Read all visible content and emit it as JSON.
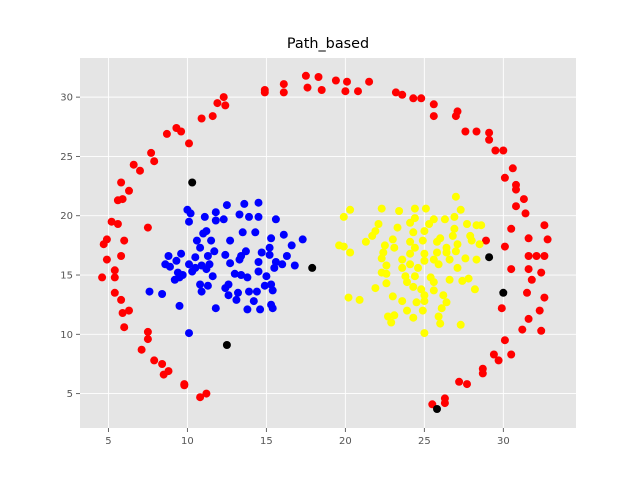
{
  "chart_data": {
    "type": "scatter",
    "title": "Path_based",
    "xlabel": "",
    "ylabel": "",
    "xlim": [
      3.2,
      34.6
    ],
    "ylim": [
      2.1,
      33.3
    ],
    "xticks": [
      5,
      10,
      15,
      20,
      25,
      30
    ],
    "yticks": [
      5,
      10,
      15,
      20,
      25,
      30
    ],
    "grid": true,
    "legend": "none",
    "colors": {
      "background": "#E5E5E5",
      "grid": "#FFFFFF",
      "ring": "#FF0000",
      "left": "#0000FF",
      "right": "#FFFF00",
      "noise": "#000000"
    },
    "series": [
      {
        "color": "#FF0000",
        "points": [
          [
            17.5,
            31.8
          ],
          [
            18.3,
            31.7
          ],
          [
            19.4,
            31.4
          ],
          [
            20.1,
            31.3
          ],
          [
            21.5,
            31.3
          ],
          [
            16.1,
            31.1
          ],
          [
            17.6,
            30.8
          ],
          [
            18.5,
            30.6
          ],
          [
            20.0,
            30.5
          ],
          [
            20.8,
            30.5
          ],
          [
            14.9,
            30.6
          ],
          [
            14.9,
            30.4
          ],
          [
            16.1,
            30.4
          ],
          [
            23.2,
            30.4
          ],
          [
            23.6,
            30.2
          ],
          [
            24.3,
            29.9
          ],
          [
            24.8,
            29.9
          ],
          [
            12.3,
            30.0
          ],
          [
            12.4,
            29.3
          ],
          [
            11.9,
            29.5
          ],
          [
            25.6,
            29.4
          ],
          [
            25.6,
            28.4
          ],
          [
            27.1,
            28.8
          ],
          [
            27.0,
            28.4
          ],
          [
            11.6,
            28.4
          ],
          [
            10.9,
            28.2
          ],
          [
            9.3,
            27.4
          ],
          [
            9.6,
            27.1
          ],
          [
            8.7,
            26.9
          ],
          [
            27.6,
            27.1
          ],
          [
            28.3,
            27.1
          ],
          [
            29.1,
            27.0
          ],
          [
            29.1,
            26.4
          ],
          [
            29.5,
            25.5
          ],
          [
            30.0,
            25.5
          ],
          [
            10.1,
            26.1
          ],
          [
            7.7,
            25.3
          ],
          [
            7.9,
            24.6
          ],
          [
            6.6,
            24.3
          ],
          [
            7.0,
            23.8
          ],
          [
            30.6,
            24.0
          ],
          [
            30.1,
            23.2
          ],
          [
            30.8,
            22.6
          ],
          [
            30.8,
            22.2
          ],
          [
            5.8,
            22.8
          ],
          [
            6.3,
            22.1
          ],
          [
            5.6,
            21.3
          ],
          [
            5.9,
            21.4
          ],
          [
            31.3,
            21.4
          ],
          [
            30.8,
            20.8
          ],
          [
            31.4,
            20.2
          ],
          [
            5.2,
            19.5
          ],
          [
            5.6,
            19.3
          ],
          [
            7.5,
            19.0
          ],
          [
            30.5,
            18.9
          ],
          [
            32.6,
            19.2
          ],
          [
            4.9,
            18.0
          ],
          [
            4.7,
            17.6
          ],
          [
            6.0,
            17.9
          ],
          [
            28.9,
            17.9
          ],
          [
            31.6,
            18.1
          ],
          [
            32.8,
            18.0
          ],
          [
            30.1,
            17.4
          ],
          [
            31.6,
            16.6
          ],
          [
            32.1,
            16.6
          ],
          [
            4.9,
            16.3
          ],
          [
            5.8,
            16.6
          ],
          [
            32.6,
            16.6
          ],
          [
            30.5,
            15.5
          ],
          [
            31.6,
            15.5
          ],
          [
            32.4,
            15.2
          ],
          [
            5.4,
            15.4
          ],
          [
            5.4,
            14.8
          ],
          [
            4.6,
            14.8
          ],
          [
            31.8,
            14.6
          ],
          [
            31.5,
            13.5
          ],
          [
            32.6,
            13.1
          ],
          [
            5.4,
            13.5
          ],
          [
            5.8,
            12.9
          ],
          [
            32.3,
            12.0
          ],
          [
            29.9,
            12.2
          ],
          [
            6.3,
            12.0
          ],
          [
            5.9,
            11.8
          ],
          [
            31.6,
            11.3
          ],
          [
            6.0,
            10.6
          ],
          [
            31.2,
            10.4
          ],
          [
            32.4,
            10.3
          ],
          [
            7.5,
            10.2
          ],
          [
            7.5,
            9.6
          ],
          [
            30.1,
            9.5
          ],
          [
            7.1,
            8.7
          ],
          [
            29.4,
            8.3
          ],
          [
            30.5,
            8.3
          ],
          [
            29.7,
            7.8
          ],
          [
            7.9,
            7.8
          ],
          [
            8.4,
            7.5
          ],
          [
            28.7,
            7.1
          ],
          [
            28.7,
            6.7
          ],
          [
            8.8,
            6.9
          ],
          [
            8.5,
            6.6
          ],
          [
            27.2,
            6.0
          ],
          [
            27.7,
            5.8
          ],
          [
            9.8,
            5.8
          ],
          [
            9.8,
            5.7
          ],
          [
            11.2,
            5.0
          ],
          [
            10.8,
            4.7
          ],
          [
            26.3,
            4.6
          ],
          [
            26.3,
            4.2
          ],
          [
            25.5,
            4.1
          ]
        ]
      },
      {
        "color": "#0000FF",
        "points": [
          [
            13.6,
            21.0
          ],
          [
            14.5,
            21.1
          ],
          [
            12.5,
            20.9
          ],
          [
            10.0,
            20.5
          ],
          [
            11.8,
            20.3
          ],
          [
            13.3,
            20.1
          ],
          [
            13.9,
            19.9
          ],
          [
            11.8,
            19.6
          ],
          [
            12.3,
            19.7
          ],
          [
            14.5,
            19.9
          ],
          [
            10.2,
            20.2
          ],
          [
            11.1,
            19.9
          ],
          [
            10.1,
            19.5
          ],
          [
            15.6,
            19.7
          ],
          [
            11.0,
            18.5
          ],
          [
            11.2,
            18.7
          ],
          [
            13.5,
            18.6
          ],
          [
            14.3,
            18.6
          ],
          [
            15.3,
            18.1
          ],
          [
            16.1,
            18.4
          ],
          [
            17.3,
            18.0
          ],
          [
            10.6,
            17.9
          ],
          [
            11.5,
            17.9
          ],
          [
            12.7,
            17.9
          ],
          [
            15.2,
            17.3
          ],
          [
            16.6,
            17.5
          ],
          [
            10.8,
            17.3
          ],
          [
            11.7,
            17.0
          ],
          [
            11.3,
            16.6
          ],
          [
            13.4,
            16.6
          ],
          [
            14.7,
            16.9
          ],
          [
            15.2,
            16.7
          ],
          [
            8.8,
            16.6
          ],
          [
            9.3,
            16.2
          ],
          [
            9.6,
            16.8
          ],
          [
            10.5,
            16.5
          ],
          [
            12.4,
            16.7
          ],
          [
            13.7,
            17.0
          ],
          [
            16.3,
            16.6
          ],
          [
            8.6,
            15.9
          ],
          [
            8.9,
            15.7
          ],
          [
            10.1,
            15.9
          ],
          [
            10.5,
            15.6
          ],
          [
            10.9,
            15.8
          ],
          [
            11.4,
            15.9
          ],
          [
            12.7,
            16.0
          ],
          [
            13.3,
            16.3
          ],
          [
            14.5,
            16.1
          ],
          [
            15.6,
            16.1
          ],
          [
            16.0,
            15.9
          ],
          [
            16.8,
            15.8
          ],
          [
            9.4,
            15.2
          ],
          [
            9.7,
            15.0
          ],
          [
            10.3,
            15.3
          ],
          [
            11.2,
            15.5
          ],
          [
            11.6,
            14.9
          ],
          [
            13.0,
            15.1
          ],
          [
            13.4,
            15.0
          ],
          [
            14.5,
            15.3
          ],
          [
            15.0,
            14.9
          ],
          [
            15.5,
            15.6
          ],
          [
            9.2,
            14.6
          ],
          [
            9.5,
            14.8
          ],
          [
            10.8,
            14.2
          ],
          [
            11.3,
            14.1
          ],
          [
            12.6,
            14.2
          ],
          [
            13.8,
            14.8
          ],
          [
            14.9,
            14.1
          ],
          [
            15.3,
            14.2
          ],
          [
            10.9,
            13.6
          ],
          [
            12.4,
            13.9
          ],
          [
            13.2,
            13.5
          ],
          [
            13.9,
            13.6
          ],
          [
            14.4,
            13.6
          ],
          [
            15.4,
            13.7
          ],
          [
            7.6,
            13.6
          ],
          [
            8.4,
            13.4
          ],
          [
            12.6,
            13.3
          ],
          [
            13.1,
            12.9
          ],
          [
            14.2,
            12.8
          ],
          [
            15.3,
            12.5
          ],
          [
            9.5,
            12.4
          ],
          [
            11.8,
            12.2
          ],
          [
            13.8,
            12.1
          ],
          [
            14.6,
            12.1
          ],
          [
            15.4,
            12.2
          ],
          [
            10.1,
            10.1
          ]
        ]
      },
      {
        "color": "#FFFF00",
        "points": [
          [
            27.0,
            21.6
          ],
          [
            24.4,
            20.6
          ],
          [
            25.1,
            20.6
          ],
          [
            22.3,
            20.6
          ],
          [
            20.3,
            20.5
          ],
          [
            23.4,
            20.4
          ],
          [
            27.3,
            20.5
          ],
          [
            19.9,
            19.9
          ],
          [
            24.4,
            19.8
          ],
          [
            25.6,
            19.7
          ],
          [
            26.3,
            19.7
          ],
          [
            26.9,
            19.9
          ],
          [
            24.1,
            19.4
          ],
          [
            25.3,
            19.3
          ],
          [
            27.7,
            19.3
          ],
          [
            28.3,
            19.2
          ],
          [
            28.6,
            19.2
          ],
          [
            22.1,
            19.3
          ],
          [
            23.3,
            19.0
          ],
          [
            21.9,
            18.7
          ],
          [
            24.3,
            18.6
          ],
          [
            25.0,
            18.7
          ],
          [
            26.9,
            18.9
          ],
          [
            27.9,
            18.3
          ],
          [
            21.7,
            18.3
          ],
          [
            23.0,
            18.0
          ],
          [
            24.9,
            17.9
          ],
          [
            26.0,
            18.1
          ],
          [
            26.8,
            18.3
          ],
          [
            21.3,
            17.8
          ],
          [
            22.5,
            17.5
          ],
          [
            24.1,
            17.8
          ],
          [
            25.8,
            17.8
          ],
          [
            28.0,
            17.9
          ],
          [
            28.5,
            17.6
          ],
          [
            19.6,
            17.5
          ],
          [
            19.9,
            17.4
          ],
          [
            27.1,
            17.6
          ],
          [
            23.1,
            17.3
          ],
          [
            24.4,
            17.3
          ],
          [
            26.4,
            17.3
          ],
          [
            27.0,
            17.0
          ],
          [
            20.3,
            16.9
          ],
          [
            22.4,
            16.9
          ],
          [
            24.1,
            16.8
          ],
          [
            25.0,
            16.8
          ],
          [
            25.8,
            16.9
          ],
          [
            26.4,
            16.9
          ],
          [
            22.3,
            16.4
          ],
          [
            23.6,
            16.3
          ],
          [
            24.1,
            15.9
          ],
          [
            25.0,
            16.2
          ],
          [
            25.6,
            16.3
          ],
          [
            26.6,
            16.3
          ],
          [
            27.6,
            16.4
          ],
          [
            28.3,
            16.3
          ],
          [
            22.6,
            15.8
          ],
          [
            23.6,
            15.6
          ],
          [
            24.6,
            15.6
          ],
          [
            25.9,
            15.9
          ],
          [
            27.1,
            15.6
          ],
          [
            22.3,
            15.2
          ],
          [
            22.6,
            15.1
          ],
          [
            23.8,
            14.9
          ],
          [
            24.4,
            14.9
          ],
          [
            25.4,
            14.8
          ],
          [
            25.6,
            14.4
          ],
          [
            26.6,
            14.6
          ],
          [
            27.4,
            14.5
          ],
          [
            27.8,
            14.7
          ],
          [
            23.9,
            14.4
          ],
          [
            22.6,
            14.3
          ],
          [
            21.9,
            13.9
          ],
          [
            24.3,
            14.0
          ],
          [
            24.8,
            13.8
          ],
          [
            25.6,
            13.7
          ],
          [
            28.2,
            13.8
          ],
          [
            23.0,
            13.2
          ],
          [
            25.0,
            13.3
          ],
          [
            26.2,
            13.3
          ],
          [
            20.2,
            13.1
          ],
          [
            20.9,
            12.9
          ],
          [
            23.6,
            12.8
          ],
          [
            24.5,
            12.7
          ],
          [
            25.0,
            12.8
          ],
          [
            26.4,
            12.7
          ],
          [
            23.9,
            12.0
          ],
          [
            24.9,
            12.0
          ],
          [
            26.1,
            12.2
          ],
          [
            23.1,
            11.6
          ],
          [
            22.7,
            11.5
          ],
          [
            24.3,
            11.4
          ],
          [
            25.9,
            11.5
          ],
          [
            22.9,
            11.0
          ],
          [
            26.0,
            10.9
          ],
          [
            27.3,
            10.8
          ],
          [
            25.0,
            10.1
          ]
        ]
      },
      {
        "color": "#000000",
        "points": [
          [
            10.3,
            22.8
          ],
          [
            17.9,
            15.6
          ],
          [
            29.1,
            16.5
          ],
          [
            30.0,
            13.5
          ],
          [
            12.5,
            9.1
          ],
          [
            25.8,
            3.7
          ]
        ]
      }
    ]
  }
}
